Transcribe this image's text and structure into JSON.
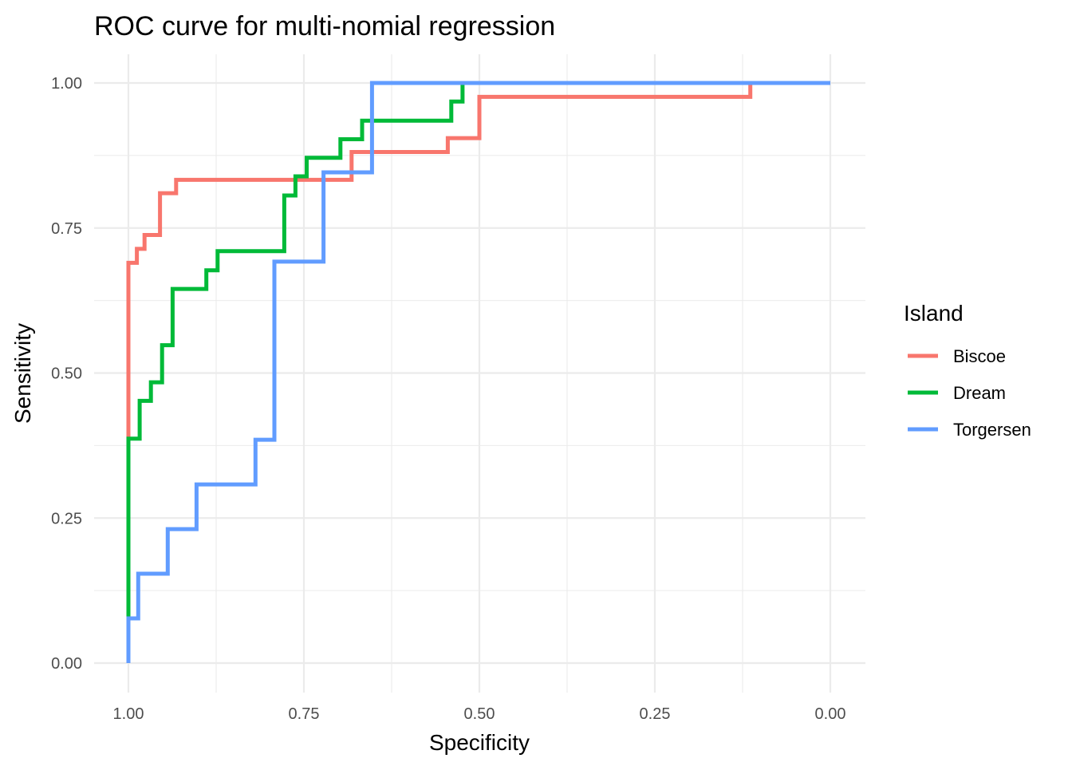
{
  "chart_data": {
    "type": "line",
    "step": true,
    "title": "ROC curve for multi-nomial regression",
    "xlabel": "Specificity",
    "ylabel": "Sensitivity",
    "xlim": [
      1.0,
      0.0
    ],
    "ylim": [
      0.0,
      1.0
    ],
    "x_reversed": true,
    "x_ticks": [
      1.0,
      0.75,
      0.5,
      0.25,
      0.0
    ],
    "x_tick_labels": [
      "1.00",
      "0.75",
      "0.50",
      "0.25",
      "0.00"
    ],
    "y_ticks": [
      0.0,
      0.25,
      0.5,
      0.75,
      1.0
    ],
    "y_tick_labels": [
      "0.00",
      "0.25",
      "0.50",
      "0.75",
      "1.00"
    ],
    "grid": true,
    "legend": {
      "title": "Island",
      "position": "right"
    },
    "series": [
      {
        "name": "Biscoe",
        "color": "#F8766D",
        "points": [
          [
            1.0,
            0.0
          ],
          [
            1.0,
            0.69
          ],
          [
            0.988,
            0.69
          ],
          [
            0.988,
            0.714
          ],
          [
            0.977,
            0.714
          ],
          [
            0.977,
            0.738
          ],
          [
            0.955,
            0.738
          ],
          [
            0.955,
            0.81
          ],
          [
            0.932,
            0.81
          ],
          [
            0.932,
            0.833
          ],
          [
            0.682,
            0.833
          ],
          [
            0.682,
            0.881
          ],
          [
            0.545,
            0.881
          ],
          [
            0.545,
            0.905
          ],
          [
            0.5,
            0.905
          ],
          [
            0.5,
            0.976
          ],
          [
            0.114,
            0.976
          ],
          [
            0.114,
            1.0
          ],
          [
            0.0,
            1.0
          ]
        ]
      },
      {
        "name": "Dream",
        "color": "#00BA38",
        "points": [
          [
            1.0,
            0.0
          ],
          [
            1.0,
            0.387
          ],
          [
            0.984,
            0.387
          ],
          [
            0.984,
            0.452
          ],
          [
            0.968,
            0.452
          ],
          [
            0.968,
            0.484
          ],
          [
            0.952,
            0.484
          ],
          [
            0.952,
            0.548
          ],
          [
            0.937,
            0.548
          ],
          [
            0.937,
            0.645
          ],
          [
            0.889,
            0.645
          ],
          [
            0.889,
            0.677
          ],
          [
            0.873,
            0.677
          ],
          [
            0.873,
            0.71
          ],
          [
            0.778,
            0.71
          ],
          [
            0.778,
            0.806
          ],
          [
            0.762,
            0.806
          ],
          [
            0.762,
            0.839
          ],
          [
            0.746,
            0.839
          ],
          [
            0.746,
            0.871
          ],
          [
            0.698,
            0.871
          ],
          [
            0.698,
            0.903
          ],
          [
            0.667,
            0.903
          ],
          [
            0.667,
            0.935
          ],
          [
            0.54,
            0.935
          ],
          [
            0.54,
            0.968
          ],
          [
            0.524,
            0.968
          ],
          [
            0.524,
            1.0
          ],
          [
            0.0,
            1.0
          ]
        ]
      },
      {
        "name": "Torgersen",
        "color": "#619CFF",
        "points": [
          [
            1.0,
            0.0
          ],
          [
            1.0,
            0.077
          ],
          [
            0.986,
            0.077
          ],
          [
            0.986,
            0.154
          ],
          [
            0.944,
            0.154
          ],
          [
            0.944,
            0.231
          ],
          [
            0.903,
            0.231
          ],
          [
            0.903,
            0.308
          ],
          [
            0.819,
            0.308
          ],
          [
            0.819,
            0.385
          ],
          [
            0.792,
            0.385
          ],
          [
            0.792,
            0.692
          ],
          [
            0.722,
            0.692
          ],
          [
            0.722,
            0.846
          ],
          [
            0.653,
            0.846
          ],
          [
            0.653,
            1.0
          ],
          [
            0.0,
            1.0
          ]
        ]
      }
    ]
  }
}
